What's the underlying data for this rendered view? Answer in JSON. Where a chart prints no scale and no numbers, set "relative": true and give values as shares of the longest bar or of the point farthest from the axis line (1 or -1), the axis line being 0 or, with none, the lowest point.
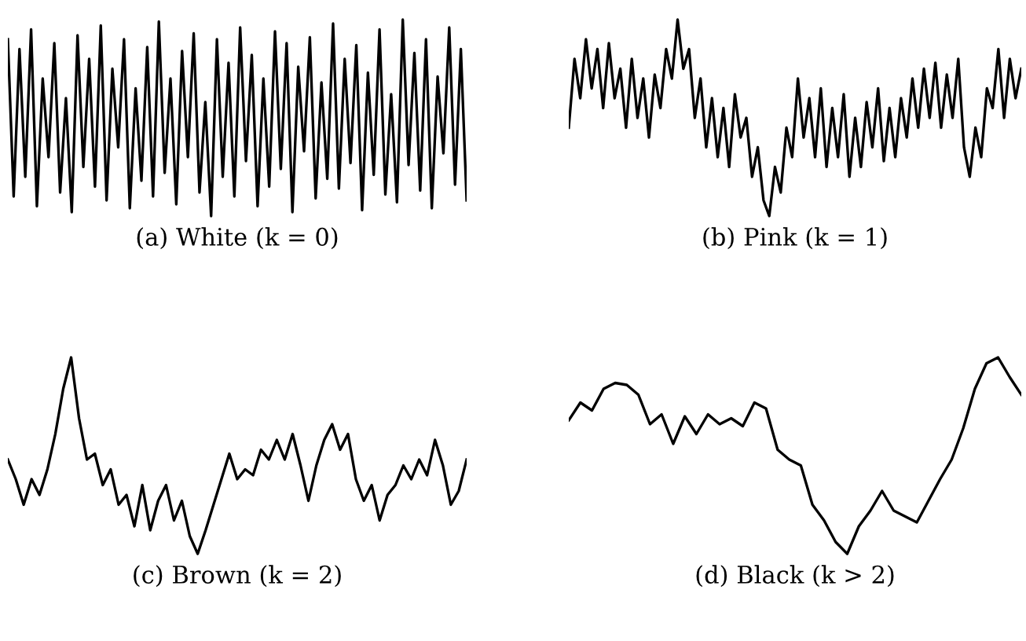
{
  "chart_data": [
    {
      "type": "line",
      "title": "(a) White (k = 0)",
      "relative": true,
      "color": "#000000",
      "values": [
        0.9,
        0.1,
        0.85,
        0.2,
        0.95,
        0.05,
        0.7,
        0.3,
        0.88,
        0.12,
        0.6,
        0.02,
        0.92,
        0.25,
        0.8,
        0.15,
        0.97,
        0.08,
        0.75,
        0.35,
        0.9,
        0.04,
        0.65,
        0.18,
        0.86,
        0.1,
        0.99,
        0.22,
        0.7,
        0.06,
        0.84,
        0.3,
        0.93,
        0.12,
        0.58,
        0.0,
        0.9,
        0.2,
        0.78,
        0.1,
        0.96,
        0.28,
        0.82,
        0.05,
        0.7,
        0.15,
        0.94,
        0.24,
        0.88,
        0.02,
        0.76,
        0.33,
        0.91,
        0.09,
        0.68,
        0.19,
        0.98,
        0.14,
        0.8,
        0.27,
        0.87,
        0.03,
        0.73,
        0.21,
        0.95,
        0.11,
        0.62,
        0.07,
        1.0,
        0.26,
        0.83,
        0.13,
        0.9,
        0.04,
        0.71,
        0.32,
        0.96,
        0.16,
        0.85,
        0.08
      ]
    },
    {
      "type": "line",
      "title": "(b) Pink (k = 1)",
      "relative": true,
      "color": "#000000",
      "values": [
        0.45,
        0.8,
        0.6,
        0.9,
        0.65,
        0.85,
        0.55,
        0.88,
        0.6,
        0.75,
        0.45,
        0.8,
        0.5,
        0.7,
        0.4,
        0.72,
        0.55,
        0.85,
        0.7,
        1.0,
        0.75,
        0.85,
        0.5,
        0.7,
        0.35,
        0.6,
        0.3,
        0.55,
        0.25,
        0.62,
        0.4,
        0.5,
        0.2,
        0.35,
        0.08,
        0.0,
        0.25,
        0.12,
        0.45,
        0.3,
        0.7,
        0.4,
        0.6,
        0.3,
        0.65,
        0.25,
        0.55,
        0.3,
        0.62,
        0.2,
        0.5,
        0.25,
        0.58,
        0.35,
        0.65,
        0.28,
        0.55,
        0.3,
        0.6,
        0.4,
        0.7,
        0.45,
        0.75,
        0.5,
        0.78,
        0.45,
        0.72,
        0.5,
        0.8,
        0.35,
        0.2,
        0.45,
        0.3,
        0.65,
        0.55,
        0.85,
        0.5,
        0.8,
        0.6,
        0.75
      ]
    },
    {
      "type": "line",
      "title": "(c) Brown (k = 2)",
      "relative": true,
      "color": "#000000",
      "values": [
        0.48,
        0.38,
        0.25,
        0.38,
        0.3,
        0.43,
        0.61,
        0.84,
        1.0,
        0.69,
        0.48,
        0.51,
        0.35,
        0.43,
        0.25,
        0.3,
        0.14,
        0.35,
        0.12,
        0.27,
        0.35,
        0.17,
        0.27,
        0.09,
        0.0,
        0.12,
        0.25,
        0.38,
        0.51,
        0.38,
        0.43,
        0.4,
        0.53,
        0.48,
        0.58,
        0.48,
        0.61,
        0.45,
        0.27,
        0.45,
        0.58,
        0.66,
        0.53,
        0.61,
        0.38,
        0.27,
        0.35,
        0.17,
        0.3,
        0.35,
        0.45,
        0.38,
        0.48,
        0.4,
        0.58,
        0.45,
        0.25,
        0.32,
        0.48
      ]
    },
    {
      "type": "line",
      "title": "(d) Black (k > 2)",
      "relative": true,
      "color": "#000000",
      "values": [
        0.68,
        0.77,
        0.73,
        0.84,
        0.87,
        0.86,
        0.81,
        0.66,
        0.71,
        0.56,
        0.7,
        0.61,
        0.71,
        0.66,
        0.69,
        0.65,
        0.77,
        0.74,
        0.53,
        0.48,
        0.45,
        0.25,
        0.17,
        0.06,
        0.0,
        0.14,
        0.22,
        0.32,
        0.22,
        0.19,
        0.16,
        0.27,
        0.38,
        0.48,
        0.64,
        0.84,
        0.97,
        1.0,
        0.9,
        0.81
      ]
    }
  ]
}
